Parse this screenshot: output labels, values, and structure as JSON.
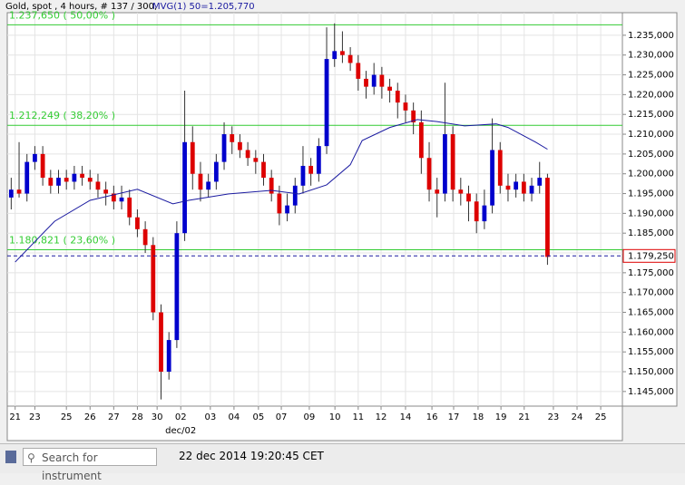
{
  "chart_data": {
    "type": "candlestick",
    "header": "Gold, spot , 4 hours, # 137 / 300,",
    "indicator_label": "MVG(1) 50=1.205,770",
    "x_sublabel": "dec/02",
    "search_placeholder": "Search for instrument",
    "timestamp": "22 dec 2014 19:20:45 CET",
    "up_color": "#0000cc",
    "down_color": "#dd0000",
    "grid": true,
    "xlim": [
      0,
      156
    ],
    "xticks": [
      {
        "value": 2,
        "label": "21"
      },
      {
        "value": 7,
        "label": "23"
      },
      {
        "value": 15,
        "label": "25"
      },
      {
        "value": 21,
        "label": "26"
      },
      {
        "value": 27,
        "label": "27"
      },
      {
        "value": 33,
        "label": "28"
      },
      {
        "value": 38,
        "label": "30"
      },
      {
        "value": 44,
        "label": "02"
      },
      {
        "value": 51.5,
        "label": "03"
      },
      {
        "value": 57.5,
        "label": "04"
      },
      {
        "value": 63.7,
        "label": "05"
      },
      {
        "value": 69.5,
        "label": "07"
      },
      {
        "value": 76.6,
        "label": "09"
      },
      {
        "value": 83.1,
        "label": "10"
      },
      {
        "value": 89,
        "label": "11"
      },
      {
        "value": 94.8,
        "label": "12"
      },
      {
        "value": 101,
        "label": "14"
      },
      {
        "value": 107.7,
        "label": "16"
      },
      {
        "value": 113.2,
        "label": "17"
      },
      {
        "value": 119.4,
        "label": "18"
      },
      {
        "value": 125.2,
        "label": "19"
      },
      {
        "value": 131.1,
        "label": "21"
      },
      {
        "value": 138.5,
        "label": "23"
      },
      {
        "value": 144.5,
        "label": "24"
      },
      {
        "value": 150.5,
        "label": "25"
      }
    ],
    "ylim": [
      1.1413,
      1.2407
    ],
    "yticks": [
      {
        "value": 1.145,
        "label": "1.145,000"
      },
      {
        "value": 1.15,
        "label": "1.150,000"
      },
      {
        "value": 1.155,
        "label": "1.155,000"
      },
      {
        "value": 1.16,
        "label": "1.160,000"
      },
      {
        "value": 1.165,
        "label": "1.165,000"
      },
      {
        "value": 1.17,
        "label": "1.170,000"
      },
      {
        "value": 1.175,
        "label": "1.175,000"
      },
      {
        "value": 1.18,
        "label": "1.180,000"
      },
      {
        "value": 1.185,
        "label": "1.185,000"
      },
      {
        "value": 1.19,
        "label": "1.190,000"
      },
      {
        "value": 1.195,
        "label": "1.195,000"
      },
      {
        "value": 1.2,
        "label": "1.200,000"
      },
      {
        "value": 1.205,
        "label": "1.205,000"
      },
      {
        "value": 1.21,
        "label": "1.210,000"
      },
      {
        "value": 1.215,
        "label": "1.215,000"
      },
      {
        "value": 1.22,
        "label": "1.220,000"
      },
      {
        "value": 1.225,
        "label": "1.225,000"
      },
      {
        "value": 1.23,
        "label": "1.230,000"
      },
      {
        "value": 1.235,
        "label": "1.235,000"
      }
    ],
    "x": [
      1,
      3,
      5,
      7,
      9,
      11,
      13,
      15,
      17,
      19,
      21,
      23,
      25,
      27,
      29,
      31,
      33,
      35,
      37,
      39,
      41,
      43,
      45,
      47,
      49,
      51,
      53,
      55,
      57,
      59,
      61,
      63,
      65,
      67,
      69,
      71,
      73,
      75,
      77,
      79,
      81,
      83,
      85,
      87,
      89,
      91,
      93,
      95,
      97,
      99,
      101,
      103,
      105,
      107,
      109,
      111,
      113,
      115,
      117,
      119,
      121,
      123,
      125,
      127,
      129,
      131,
      133,
      135,
      137
    ],
    "open": [
      1.194,
      1.196,
      1.195,
      1.203,
      1.205,
      1.199,
      1.197,
      1.199,
      1.198,
      1.2,
      1.199,
      1.198,
      1.196,
      1.195,
      1.193,
      1.194,
      1.189,
      1.186,
      1.182,
      1.165,
      1.15,
      1.158,
      1.185,
      1.208,
      1.2,
      1.196,
      1.198,
      1.203,
      1.21,
      1.208,
      1.206,
      1.204,
      1.203,
      1.199,
      1.195,
      1.19,
      1.192,
      1.197,
      1.202,
      1.2,
      1.207,
      1.229,
      1.231,
      1.23,
      1.228,
      1.224,
      1.222,
      1.225,
      1.222,
      1.221,
      1.218,
      1.216,
      1.213,
      1.204,
      1.196,
      1.195,
      1.21,
      1.196,
      1.195,
      1.193,
      1.188,
      1.192,
      1.206,
      1.197,
      1.196,
      1.198,
      1.195,
      1.197,
      1.199
    ],
    "high": [
      1.199,
      1.208,
      1.205,
      1.207,
      1.207,
      1.201,
      1.201,
      1.201,
      1.202,
      1.202,
      1.201,
      1.2,
      1.198,
      1.197,
      1.197,
      1.196,
      1.191,
      1.188,
      1.184,
      1.167,
      1.16,
      1.188,
      1.221,
      1.212,
      1.203,
      1.2,
      1.205,
      1.213,
      1.212,
      1.21,
      1.208,
      1.206,
      1.205,
      1.201,
      1.197,
      1.195,
      1.199,
      1.207,
      1.204,
      1.209,
      1.237,
      1.238,
      1.236,
      1.232,
      1.23,
      1.226,
      1.228,
      1.227,
      1.224,
      1.223,
      1.22,
      1.218,
      1.216,
      1.208,
      1.199,
      1.223,
      1.212,
      1.199,
      1.197,
      1.195,
      1.196,
      1.214,
      1.208,
      1.2,
      1.2,
      1.2,
      1.199,
      1.203,
      1.2
    ],
    "low": [
      1.191,
      1.194,
      1.193,
      1.201,
      1.197,
      1.195,
      1.195,
      1.196,
      1.196,
      1.197,
      1.196,
      1.194,
      1.192,
      1.191,
      1.191,
      1.187,
      1.184,
      1.18,
      1.163,
      1.143,
      1.148,
      1.156,
      1.183,
      1.196,
      1.193,
      1.194,
      1.196,
      1.201,
      1.205,
      1.204,
      1.202,
      1.2,
      1.197,
      1.193,
      1.187,
      1.188,
      1.19,
      1.195,
      1.197,
      1.198,
      1.205,
      1.227,
      1.228,
      1.226,
      1.221,
      1.219,
      1.22,
      1.219,
      1.218,
      1.214,
      1.213,
      1.21,
      1.2,
      1.193,
      1.189,
      1.193,
      1.193,
      1.192,
      1.188,
      1.185,
      1.186,
      1.19,
      1.195,
      1.193,
      1.194,
      1.193,
      1.193,
      1.195,
      1.177
    ],
    "close": [
      1.196,
      1.195,
      1.203,
      1.205,
      1.199,
      1.197,
      1.199,
      1.198,
      1.2,
      1.199,
      1.198,
      1.196,
      1.195,
      1.193,
      1.194,
      1.189,
      1.186,
      1.182,
      1.165,
      1.15,
      1.158,
      1.185,
      1.208,
      1.2,
      1.196,
      1.198,
      1.203,
      1.21,
      1.208,
      1.206,
      1.204,
      1.203,
      1.199,
      1.195,
      1.19,
      1.192,
      1.197,
      1.202,
      1.2,
      1.207,
      1.229,
      1.231,
      1.23,
      1.228,
      1.224,
      1.222,
      1.225,
      1.222,
      1.221,
      1.218,
      1.216,
      1.213,
      1.204,
      1.196,
      1.195,
      1.21,
      1.196,
      1.195,
      1.193,
      1.188,
      1.192,
      1.206,
      1.197,
      1.196,
      1.198,
      1.195,
      1.197,
      1.199,
      1.179
    ],
    "moving_average": {
      "color": "#1a1aa0",
      "x": [
        2,
        12,
        21,
        33,
        42,
        46,
        56,
        67,
        74,
        81,
        87,
        90,
        97,
        104,
        109,
        116,
        124,
        127,
        134,
        137
      ],
      "values": [
        1.1777,
        1.188,
        1.1933,
        1.1961,
        1.1924,
        1.1933,
        1.1949,
        1.1958,
        1.1949,
        1.1972,
        1.2023,
        1.2084,
        1.2117,
        1.2137,
        1.2132,
        1.2121,
        1.2126,
        1.2117,
        1.208,
        1.2062
      ]
    },
    "levels": [
      {
        "value": 1.23765,
        "label": "1.237,650 ( 50,00% )"
      },
      {
        "value": 1.212249,
        "label": "1.212,249 ( 38,20% )"
      },
      {
        "value": 1.180821,
        "label": "1.180,821 ( 23,60% )"
      }
    ],
    "level_color": "#33cc33",
    "current_price": {
      "value": 1.17925,
      "label": "1.179,250"
    }
  }
}
